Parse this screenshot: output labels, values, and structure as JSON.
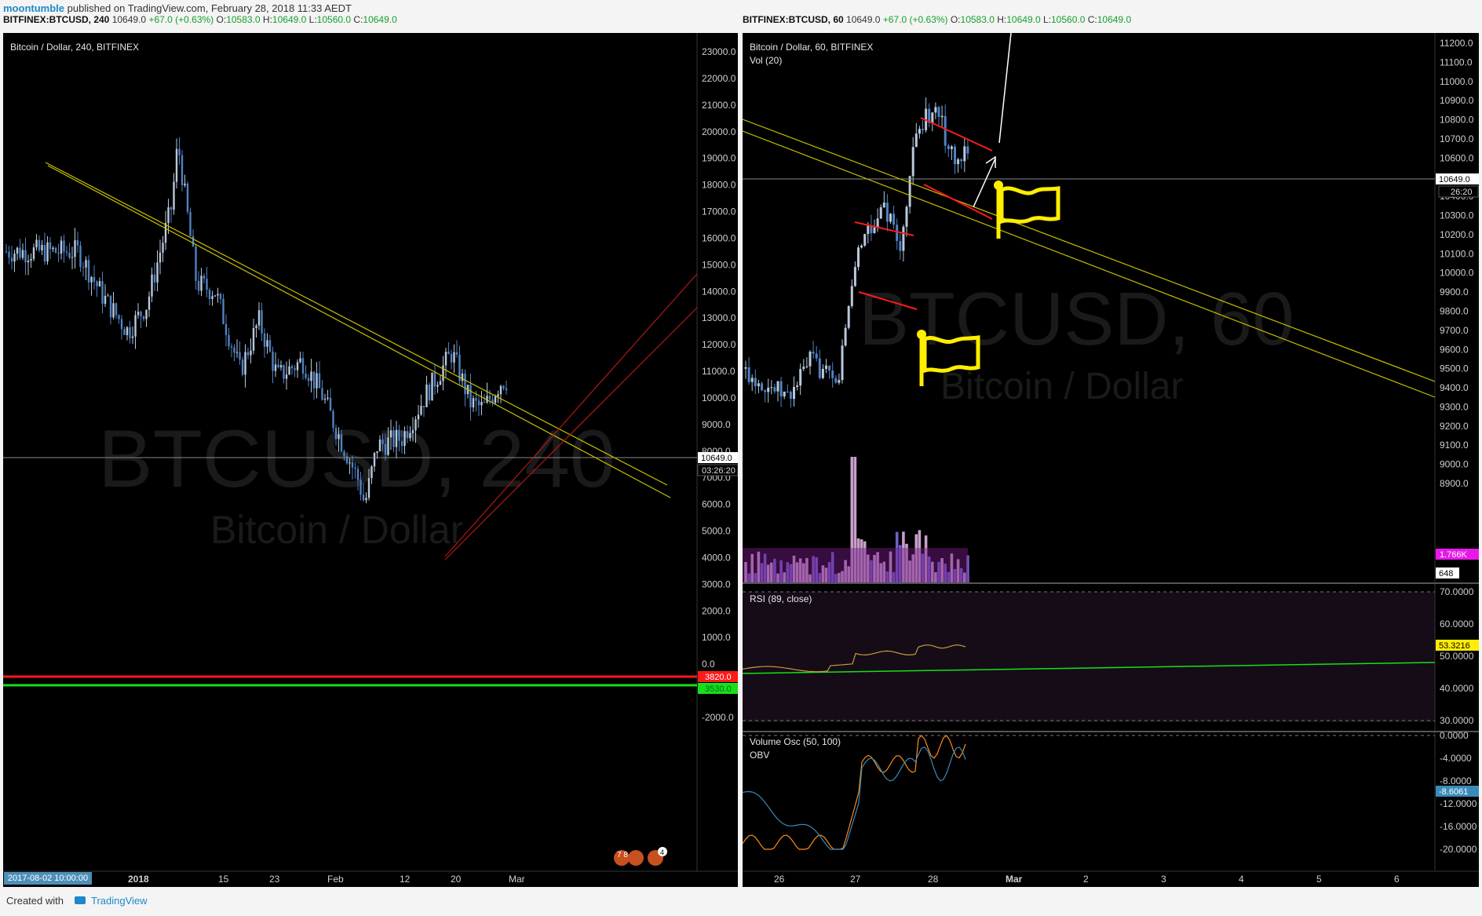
{
  "header": {
    "user": "moontumble",
    "published_text": "published on TradingView.com, February 28, 2018 11:33 AEDT"
  },
  "left_chart": {
    "symbol_line": {
      "symbol": "BITFINEX:BTCUSD, 240",
      "price": "10649.0",
      "change": "+67.0 (+0.63%)",
      "o_label": "O:",
      "o": "10583.0",
      "h_label": "H:",
      "h": "10649.0",
      "l_label": "L:",
      "l": "10560.0",
      "c_label": "C:",
      "c": "10649.0"
    },
    "pane_title": "Bitcoin / Dollar, 240, BITFINEX",
    "watermark_symbol": "BTCUSD, 240",
    "watermark_name": "Bitcoin / Dollar",
    "price_tag": "10649.0",
    "countdown_tag": "03:26:20",
    "red_level_tag": "3820.0",
    "green_level_tag": "3530.0",
    "date_tag": "2017-08-02 10:00:00",
    "badge_events": "7 8",
    "badge_count": "4"
  },
  "right_chart": {
    "symbol_line": {
      "symbol": "BITFINEX:BTCUSD, 60",
      "price": "10649.0",
      "change": "+67.0 (+0.63%)",
      "o_label": "O:",
      "o": "10583.0",
      "h_label": "H:",
      "h": "10649.0",
      "l_label": "L:",
      "l": "10560.0",
      "c_label": "C:",
      "c": "10649.0"
    },
    "pane_title": "Bitcoin / Dollar, 60, BITFINEX",
    "vol_label": "Vol (20)",
    "watermark_symbol": "BTCUSD, 60",
    "watermark_name": "Bitcoin / Dollar",
    "price_tag": "10649.0",
    "countdown_tag": "26:20",
    "vol_ma_tag": "1.766K",
    "vol_tag": "648",
    "rsi_label": "RSI (89, close)",
    "rsi_tag": "53.3216",
    "osc_label": "Volume Osc (50, 100)",
    "obv_label": "OBV",
    "osc_tag": "-8.6061"
  },
  "footer": {
    "created_with": "Created with",
    "brand": "TradingView"
  },
  "colors": {
    "up": "#b9c9dc",
    "down": "#4f82c4",
    "trendline": "#c8c000",
    "channel": "#b01818",
    "red_level": "#ff1a1a",
    "green_level": "#18e018",
    "flag": "#ffee00",
    "rsi_line": "#c89a3a",
    "rsi_bg": "#150c18",
    "osc": "#ff8c1a",
    "obv": "#3a8bb8"
  },
  "chart_data": [
    {
      "type": "candlestick",
      "title": "Bitcoin / Dollar, 240, BITFINEX",
      "x_tick_labels": [
        "2018",
        "15",
        "23",
        "Feb",
        "12",
        "20",
        "Mar"
      ],
      "y_tick_labels": [
        "23000.0",
        "22000.0",
        "21000.0",
        "20000.0",
        "19000.0",
        "18000.0",
        "17000.0",
        "16000.0",
        "15000.0",
        "14000.0",
        "13000.0",
        "12000.0",
        "11000.0",
        "10000.0",
        "9000.0",
        "8000.0",
        "7000.0",
        "6000.0",
        "5000.0",
        "4000.0",
        "3000.0",
        "2000.0",
        "1000.0",
        "0.0",
        "-1000.0",
        "-2000.0"
      ],
      "ylim": [
        -2000,
        23000
      ],
      "approx_close_path": [
        {
          "x": "2017-12-22",
          "y": 15500
        },
        {
          "x": "2017-12-26",
          "y": 13800
        },
        {
          "x": "2017-12-30",
          "y": 12500
        },
        {
          "x": "2018-01-02",
          "y": 13500
        },
        {
          "x": "2018-01-06",
          "y": 17200
        },
        {
          "x": "2018-01-07",
          "y": 19600
        },
        {
          "x": "2018-01-10",
          "y": 14300
        },
        {
          "x": "2018-01-13",
          "y": 14000
        },
        {
          "x": "2018-01-17",
          "y": 11000
        },
        {
          "x": "2018-01-20",
          "y": 12900
        },
        {
          "x": "2018-01-23",
          "y": 10800
        },
        {
          "x": "2018-01-27",
          "y": 11400
        },
        {
          "x": "2018-01-30",
          "y": 10200
        },
        {
          "x": "2018-02-02",
          "y": 8500
        },
        {
          "x": "2018-02-05",
          "y": 6900
        },
        {
          "x": "2018-02-06",
          "y": 6000
        },
        {
          "x": "2018-02-08",
          "y": 8200
        },
        {
          "x": "2018-02-12",
          "y": 8500
        },
        {
          "x": "2018-02-16",
          "y": 10200
        },
        {
          "x": "2018-02-20",
          "y": 11700
        },
        {
          "x": "2018-02-23",
          "y": 9800
        },
        {
          "x": "2018-02-25",
          "y": 9600
        },
        {
          "x": "2018-02-28",
          "y": 10649
        }
      ],
      "last_price": 10649.0,
      "horizontal_levels": [
        3820.0,
        3530.0
      ]
    },
    {
      "type": "candlestick",
      "title": "Bitcoin / Dollar, 60, BITFINEX",
      "x_tick_labels": [
        "26",
        "27",
        "28",
        "Mar",
        "2",
        "3",
        "4",
        "5",
        "6"
      ],
      "y_tick_labels": [
        "11200.0",
        "11100.0",
        "11000.0",
        "10900.0",
        "10800.0",
        "10700.0",
        "10600.0",
        "10500.0",
        "10400.0",
        "10300.0",
        "10200.0",
        "10100.0",
        "10000.0",
        "9900.0",
        "9800.0",
        "9700.0",
        "9600.0",
        "9500.0",
        "9400.0",
        "9300.0",
        "9200.0",
        "9100.0",
        "9000.0",
        "8900.0"
      ],
      "ylim": [
        8900,
        11200
      ],
      "approx_close_path": [
        {
          "x": "2018-02-25 12:00",
          "y": 9500
        },
        {
          "x": "2018-02-26 03:00",
          "y": 9350
        },
        {
          "x": "2018-02-26 10:00",
          "y": 9550
        },
        {
          "x": "2018-02-26 18:00",
          "y": 9400
        },
        {
          "x": "2018-02-27 00:00",
          "y": 10100
        },
        {
          "x": "2018-02-27 08:00",
          "y": 10350
        },
        {
          "x": "2018-02-27 14:00",
          "y": 10150
        },
        {
          "x": "2018-02-27 18:00",
          "y": 10700
        },
        {
          "x": "2018-02-28 00:00",
          "y": 10880
        },
        {
          "x": "2018-02-28 06:00",
          "y": 10600
        },
        {
          "x": "2018-02-28 11:00",
          "y": 10649
        }
      ],
      "last_price": 10649.0
    },
    {
      "type": "line",
      "title": "RSI (89, close)",
      "y_tick_labels": [
        "70.0000",
        "60.0000",
        "50.0000",
        "40.0000",
        "30.0000"
      ],
      "ylim": [
        30,
        70
      ],
      "last_value": 53.3216
    },
    {
      "type": "line",
      "title": "Volume Osc (50, 100)",
      "series": [
        {
          "name": "OBV",
          "last_value": -8.6061
        }
      ],
      "y_tick_labels": [
        "0.0000",
        "-4.0000",
        "-8.0000",
        "-12.0000",
        "-16.0000",
        "-20.0000"
      ],
      "ylim": [
        -20,
        0
      ]
    }
  ]
}
